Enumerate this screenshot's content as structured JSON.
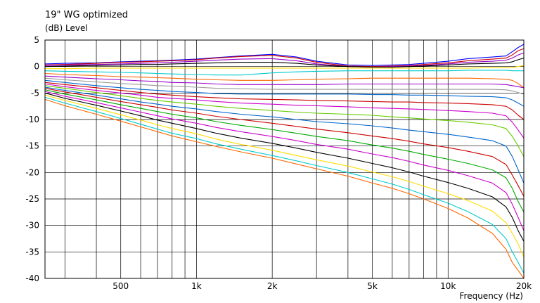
{
  "chart_data": {
    "type": "line",
    "title": "19\" WG optimized",
    "ylabel": "(dB)  Level",
    "xlabel": "Frequency  (Hz)",
    "x_scale": "log",
    "xlim": [
      250,
      20000
    ],
    "ylim": [
      -40,
      5
    ],
    "grid": true,
    "legend": "none",
    "x_tick_labels": [
      {
        "value": 500,
        "label": "500"
      },
      {
        "value": 1000,
        "label": "1k"
      },
      {
        "value": 2000,
        "label": "2k"
      },
      {
        "value": 5000,
        "label": "5k"
      },
      {
        "value": 10000,
        "label": "10k"
      },
      {
        "value": 20000,
        "label": "20k"
      }
    ],
    "y_ticks": [
      5,
      0,
      -5,
      -10,
      -15,
      -20,
      -25,
      -30,
      -35,
      -40
    ],
    "x": [
      250,
      300,
      400,
      500,
      600,
      700,
      800,
      1000,
      1200,
      1500,
      2000,
      2500,
      3000,
      4000,
      5000,
      6000,
      7000,
      8000,
      10000,
      12000,
      15000,
      17000,
      18000,
      19000,
      20000
    ],
    "series": [
      {
        "color": "#0000ff",
        "values": [
          0.5,
          0.6,
          0.7,
          0.9,
          1.0,
          1.1,
          1.2,
          1.4,
          1.7,
          2.0,
          2.3,
          1.8,
          1.0,
          0.3,
          0.2,
          0.3,
          0.4,
          0.6,
          1.0,
          1.5,
          1.8,
          2.0,
          2.8,
          3.6,
          4.2
        ]
      },
      {
        "color": "#cc0000",
        "values": [
          0.3,
          0.4,
          0.6,
          0.8,
          0.9,
          1.0,
          1.1,
          1.3,
          1.6,
          1.9,
          2.1,
          1.6,
          0.8,
          0.1,
          0.0,
          0.1,
          0.2,
          0.4,
          0.7,
          1.1,
          1.4,
          1.6,
          2.2,
          3.0,
          3.4
        ]
      },
      {
        "color": "#9900cc",
        "values": [
          0.2,
          0.3,
          0.4,
          0.5,
          0.6,
          0.7,
          0.8,
          1.0,
          1.2,
          1.4,
          1.5,
          1.1,
          0.5,
          0.0,
          -0.1,
          0.0,
          0.1,
          0.2,
          0.5,
          0.8,
          1.0,
          1.2,
          1.6,
          2.2,
          2.6
        ]
      },
      {
        "color": "#000000",
        "values": [
          0.0,
          0.1,
          0.2,
          0.3,
          0.4,
          0.4,
          0.5,
          0.6,
          0.7,
          0.8,
          0.8,
          0.6,
          0.3,
          0.0,
          -0.1,
          -0.1,
          0.0,
          0.1,
          0.3,
          0.5,
          0.6,
          0.7,
          0.9,
          1.3,
          1.6
        ]
      },
      {
        "color": "#ffdd00",
        "values": [
          -0.4,
          -0.4,
          -0.3,
          -0.3,
          -0.3,
          -0.3,
          -0.3,
          -0.3,
          -0.3,
          -0.3,
          -0.3,
          -0.3,
          -0.3,
          -0.3,
          -0.3,
          -0.3,
          -0.3,
          -0.3,
          -0.3,
          -0.3,
          -0.2,
          -0.2,
          -0.2,
          0.0,
          0.2
        ]
      },
      {
        "color": "#00cccc",
        "values": [
          -0.8,
          -0.9,
          -1.0,
          -1.1,
          -1.2,
          -1.3,
          -1.4,
          -1.5,
          -1.6,
          -1.6,
          -1.2,
          -1.0,
          -0.9,
          -0.8,
          -0.8,
          -0.8,
          -0.8,
          -0.8,
          -0.8,
          -0.7,
          -0.7,
          -0.7,
          -0.8,
          -0.8,
          -0.8
        ]
      },
      {
        "color": "#ff6600",
        "values": [
          -1.3,
          -1.5,
          -1.7,
          -1.9,
          -2.0,
          -2.1,
          -2.2,
          -2.4,
          -2.5,
          -2.6,
          -2.6,
          -2.5,
          -2.4,
          -2.3,
          -2.2,
          -2.2,
          -2.2,
          -2.2,
          -2.2,
          -2.2,
          -2.3,
          -2.4,
          -2.6,
          -3.2,
          -4.0
        ]
      },
      {
        "color": "#9900cc",
        "values": [
          -1.8,
          -2.0,
          -2.3,
          -2.5,
          -2.7,
          -2.8,
          -3.0,
          -3.1,
          -3.3,
          -3.4,
          -3.4,
          -3.4,
          -3.4,
          -3.3,
          -3.3,
          -3.3,
          -3.3,
          -3.3,
          -3.3,
          -3.3,
          -3.3,
          -3.4,
          -3.6,
          -3.8,
          -4.0
        ]
      },
      {
        "color": "#999999",
        "values": [
          -2.2,
          -2.5,
          -2.9,
          -3.2,
          -3.4,
          -3.6,
          -3.7,
          -3.9,
          -4.1,
          -4.2,
          -4.3,
          -4.3,
          -4.3,
          -4.3,
          -4.3,
          -4.3,
          -4.3,
          -4.3,
          -4.3,
          -4.3,
          -4.3,
          -4.4,
          -4.6,
          -4.9,
          -5.2
        ]
      },
      {
        "color": "#0066cc",
        "values": [
          -2.6,
          -3.0,
          -3.6,
          -4.0,
          -4.3,
          -4.5,
          -4.7,
          -4.9,
          -5.1,
          -5.2,
          -5.2,
          -5.2,
          -5.2,
          -5.2,
          -5.3,
          -5.3,
          -5.4,
          -5.4,
          -5.5,
          -5.6,
          -5.7,
          -5.9,
          -6.3,
          -6.9,
          -7.5
        ]
      },
      {
        "color": "#cc0000",
        "values": [
          -3.0,
          -3.4,
          -4.0,
          -4.5,
          -4.9,
          -5.2,
          -5.4,
          -5.7,
          -5.9,
          -6.1,
          -6.2,
          -6.3,
          -6.4,
          -6.5,
          -6.6,
          -6.7,
          -6.7,
          -6.8,
          -6.9,
          -7.0,
          -7.2,
          -7.5,
          -8.2,
          -9.2,
          -10.0
        ]
      },
      {
        "color": "#cc00cc",
        "values": [
          -3.3,
          -3.8,
          -4.5,
          -5.0,
          -5.4,
          -5.8,
          -6.0,
          -6.3,
          -6.6,
          -6.9,
          -7.1,
          -7.3,
          -7.4,
          -7.6,
          -7.8,
          -7.9,
          -8.0,
          -8.1,
          -8.3,
          -8.5,
          -8.8,
          -9.3,
          -10.5,
          -12.0,
          -13.5
        ]
      },
      {
        "color": "#66cc00",
        "values": [
          -3.6,
          -4.1,
          -4.9,
          -5.5,
          -6.0,
          -6.4,
          -6.7,
          -7.1,
          -7.5,
          -7.9,
          -8.3,
          -8.6,
          -8.8,
          -9.0,
          -9.2,
          -9.5,
          -9.7,
          -9.9,
          -10.2,
          -10.5,
          -11.0,
          -11.7,
          -13.2,
          -15.0,
          -17.0
        ]
      },
      {
        "color": "#0066cc",
        "values": [
          -3.9,
          -4.5,
          -5.4,
          -6.1,
          -6.7,
          -7.1,
          -7.5,
          -8.0,
          -8.5,
          -9.0,
          -9.5,
          -10.0,
          -10.4,
          -10.8,
          -11.2,
          -11.6,
          -12.0,
          -12.3,
          -12.8,
          -13.3,
          -14.0,
          -15.0,
          -17.0,
          -19.5,
          -22.0
        ]
      },
      {
        "color": "#cc0000",
        "values": [
          -4.1,
          -4.8,
          -5.8,
          -6.6,
          -7.2,
          -7.7,
          -8.2,
          -8.8,
          -9.4,
          -10.0,
          -10.7,
          -11.3,
          -11.8,
          -12.5,
          -13.1,
          -13.6,
          -14.1,
          -14.6,
          -15.3,
          -16.0,
          -17.0,
          -18.5,
          -20.5,
          -22.5,
          -24.5
        ]
      },
      {
        "color": "#00aa00",
        "values": [
          -4.4,
          -5.2,
          -6.3,
          -7.2,
          -7.9,
          -8.5,
          -9.0,
          -9.7,
          -10.4,
          -11.1,
          -11.9,
          -12.6,
          -13.2,
          -14.0,
          -14.8,
          -15.4,
          -16.0,
          -16.6,
          -17.5,
          -18.3,
          -19.5,
          -21.0,
          -23.0,
          -25.5,
          -27.5
        ]
      },
      {
        "color": "#cc00cc",
        "values": [
          -4.7,
          -5.6,
          -6.8,
          -7.8,
          -8.6,
          -9.3,
          -9.9,
          -10.7,
          -11.5,
          -12.3,
          -13.2,
          -14.0,
          -14.7,
          -15.6,
          -16.5,
          -17.2,
          -17.9,
          -18.6,
          -19.6,
          -20.6,
          -22.0,
          -23.8,
          -26.0,
          -28.5,
          -31.0
        ]
      },
      {
        "color": "#000000",
        "values": [
          -5.0,
          -6.0,
          -7.3,
          -8.4,
          -9.3,
          -10.1,
          -10.7,
          -11.7,
          -12.6,
          -13.5,
          -14.5,
          -15.4,
          -16.2,
          -17.3,
          -18.3,
          -19.1,
          -19.9,
          -20.7,
          -21.9,
          -23.0,
          -24.6,
          -26.5,
          -28.5,
          -31.0,
          -33.0
        ]
      },
      {
        "color": "#ffdd00",
        "values": [
          -5.4,
          -6.4,
          -7.9,
          -9.1,
          -10.1,
          -11.0,
          -11.7,
          -12.7,
          -13.7,
          -14.7,
          -15.8,
          -16.8,
          -17.6,
          -18.8,
          -19.9,
          -20.8,
          -21.7,
          -22.6,
          -24.0,
          -25.3,
          -27.3,
          -29.5,
          -31.5,
          -33.5,
          -36.0
        ]
      },
      {
        "color": "#00cccc",
        "values": [
          -5.8,
          -6.9,
          -8.5,
          -9.8,
          -10.9,
          -11.8,
          -12.6,
          -13.6,
          -14.6,
          -15.6,
          -16.8,
          -17.8,
          -18.7,
          -20.0,
          -21.2,
          -22.2,
          -23.2,
          -24.2,
          -25.8,
          -27.4,
          -29.8,
          -32.5,
          -35.0,
          -37.0,
          -39.0
        ]
      },
      {
        "color": "#ff6600",
        "values": [
          -6.2,
          -7.4,
          -9.0,
          -10.3,
          -11.4,
          -12.3,
          -13.1,
          -14.2,
          -15.1,
          -16.1,
          -17.3,
          -18.4,
          -19.3,
          -20.7,
          -22.0,
          -23.0,
          -24.0,
          -25.0,
          -26.8,
          -28.6,
          -31.5,
          -34.5,
          -37.0,
          -38.5,
          -40.0
        ]
      }
    ]
  }
}
